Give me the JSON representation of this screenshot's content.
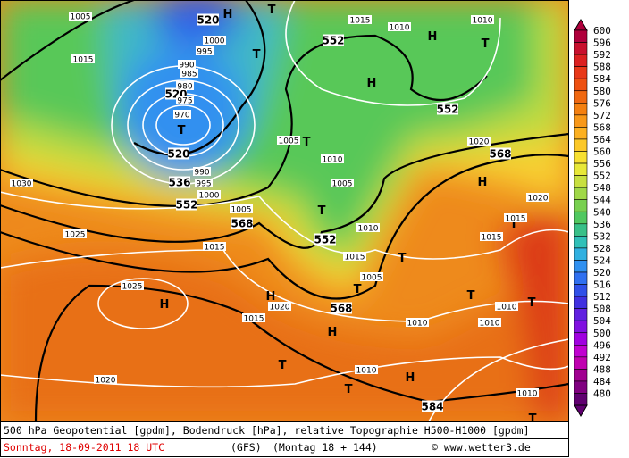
{
  "map": {
    "pressure_systems": [
      "T",
      "T",
      "T",
      "T",
      "T",
      "T",
      "T",
      "T",
      "T",
      "T",
      "T",
      "T",
      "T",
      "T",
      "H",
      "H",
      "H",
      "H",
      "H",
      "H",
      "H",
      "H"
    ],
    "geopotential_labels": [
      "520",
      "552",
      "552",
      "520",
      "520",
      "536",
      "552",
      "568",
      "552",
      "568",
      "568",
      "584"
    ],
    "pressure_labels": [
      "1005",
      "1015",
      "1030",
      "1025",
      "1025",
      "1020",
      "1015",
      "1015",
      "1020",
      "1010",
      "1015",
      "1010",
      "1020",
      "1020",
      "1015",
      "1015",
      "1010",
      "1010",
      "1010",
      "1010",
      "1010",
      "1005",
      "1010",
      "1005",
      "1010",
      "1015",
      "1005",
      "1005",
      "1000",
      "995",
      "990",
      "985",
      "980",
      "970",
      "975",
      "990",
      "995",
      "1000"
    ]
  },
  "legend": {
    "values": [
      600,
      596,
      592,
      588,
      584,
      580,
      576,
      572,
      568,
      564,
      560,
      556,
      552,
      548,
      544,
      540,
      536,
      532,
      528,
      524,
      520,
      516,
      512,
      508,
      504,
      500,
      496,
      492,
      488,
      484,
      480
    ]
  },
  "footer": {
    "line1": "500 hPa Geopotential [gpdm], Bodendruck [hPa], relative Topographie H500-H1000 [gpdm]",
    "date": "Sonntag, 18-09-2011  18 UTC",
    "model": "(GFS)",
    "forecast": "(Montag 18 + 144)",
    "credit": "© www.wetter3.de"
  }
}
